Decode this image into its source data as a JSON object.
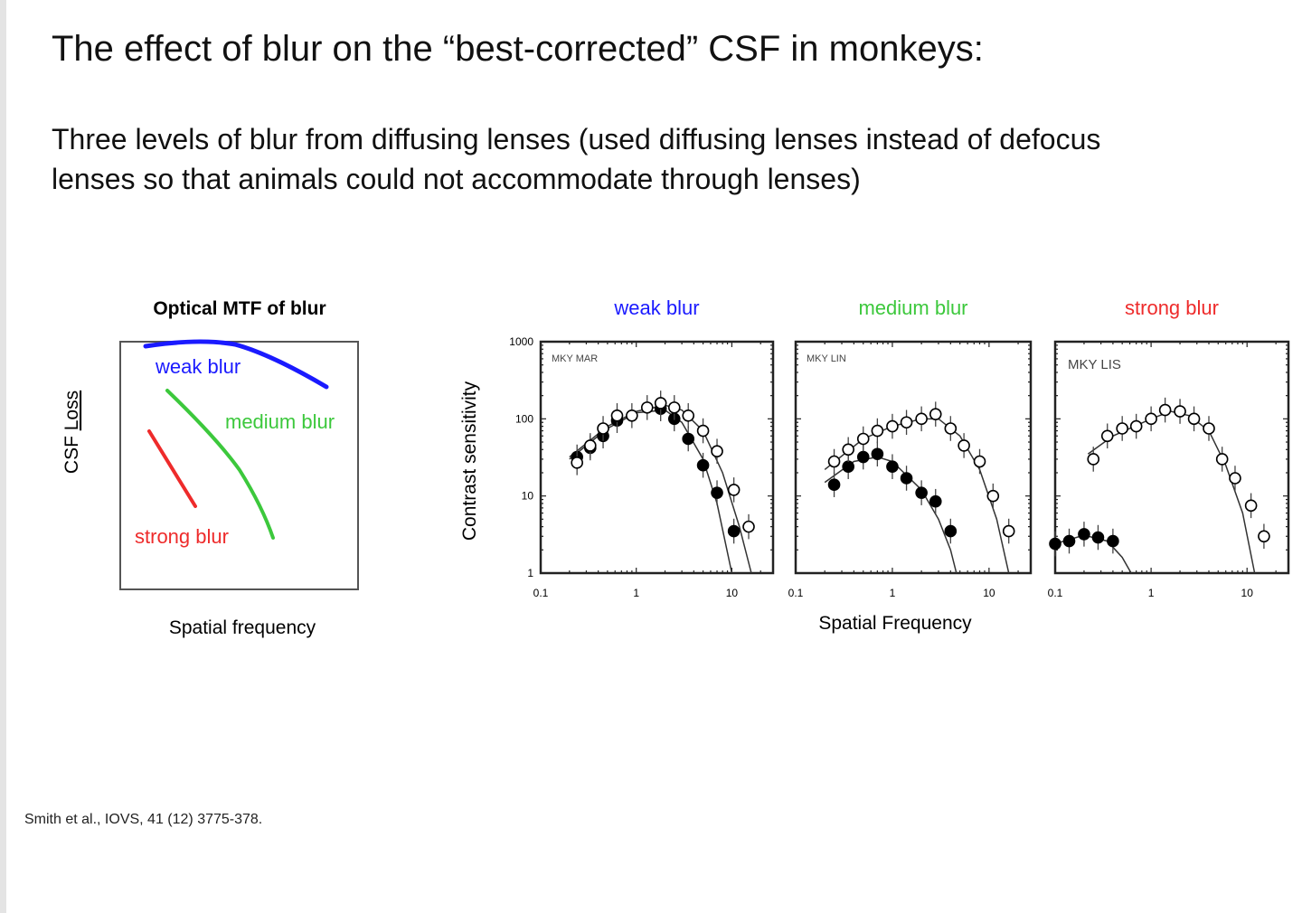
{
  "slide": {
    "title": "The effect of blur on the “best-corrected” CSF in monkeys:",
    "subtitle_line1": "Three levels of blur from diffusing lenses (used diffusing lenses instead of defocus",
    "subtitle_line2": "lenses so that animals could not accommodate through lenses)",
    "citation": "Smith et al., IOVS, 41 (12) 3775-378."
  },
  "colors": {
    "weak": "#1a1aff",
    "medium": "#3cc83c",
    "strong": "#ee2b2b"
  },
  "chart_data": [
    {
      "type": "line",
      "title": "Optical MTF of blur",
      "xlabel": "Spatial frequency",
      "ylabel_prefix": "CSF ",
      "ylabel_underlined": "Loss",
      "series": [
        {
          "name": "weak blur",
          "color": "#1a1aff"
        },
        {
          "name": "medium blur",
          "color": "#3cc83c"
        },
        {
          "name": "strong blur",
          "color": "#ee2b2b"
        }
      ]
    },
    {
      "type": "scatter",
      "title": "weak blur",
      "title_color": "#1a1aff",
      "panel_label": "MKY MAR",
      "ylabel": "Contrast sensitivity",
      "xscale": "log",
      "yscale": "log",
      "xlim": [
        0.1,
        27
      ],
      "ylim": [
        1,
        1000
      ],
      "xticks": [
        "0.1",
        "1",
        "10"
      ],
      "yticks": [
        "1",
        "10",
        "100",
        "1000"
      ],
      "series": [
        {
          "marker": "open",
          "x": [
            0.24,
            0.33,
            0.45,
            0.63,
            0.9,
            1.3,
            1.8,
            2.5,
            3.5,
            5,
            7,
            10.5,
            15
          ],
          "y": [
            27,
            45,
            75,
            110,
            110,
            140,
            160,
            140,
            110,
            70,
            38,
            12,
            4
          ],
          "fit": [
            [
              0.2,
              32
            ],
            [
              0.5,
              80
            ],
            [
              1,
              125
            ],
            [
              2,
              150
            ],
            [
              3,
              130
            ],
            [
              5,
              70
            ],
            [
              8,
              20
            ],
            [
              12,
              4
            ],
            [
              16,
              1
            ]
          ]
        },
        {
          "marker": "filled",
          "x": [
            0.24,
            0.33,
            0.45,
            0.63,
            1.8,
            2.5,
            3.5,
            5,
            7,
            10.5
          ],
          "y": [
            32,
            42,
            60,
            95,
            135,
            100,
            55,
            25,
            11,
            3.5
          ],
          "fit": [
            [
              0.2,
              30
            ],
            [
              0.5,
              75
            ],
            [
              1,
              120
            ],
            [
              2,
              130
            ],
            [
              3,
              90
            ],
            [
              5,
              30
            ],
            [
              7,
              8
            ],
            [
              10,
              1
            ]
          ]
        }
      ]
    },
    {
      "type": "scatter",
      "title": "medium blur",
      "title_color": "#3cc83c",
      "panel_label": "MKY LIN",
      "xlabel": "Spatial Frequency",
      "xscale": "log",
      "yscale": "log",
      "xlim": [
        0.1,
        27
      ],
      "ylim": [
        1,
        1000
      ],
      "xticks": [
        "0.1",
        "1",
        "10"
      ],
      "series": [
        {
          "marker": "open",
          "x": [
            0.25,
            0.35,
            0.5,
            0.7,
            1,
            1.4,
            2,
            2.8,
            4,
            5.5,
            8,
            11,
            16
          ],
          "y": [
            28,
            40,
            55,
            70,
            80,
            90,
            100,
            115,
            75,
            45,
            28,
            10,
            3.5
          ],
          "fit": [
            [
              0.2,
              22
            ],
            [
              0.5,
              55
            ],
            [
              1,
              80
            ],
            [
              2,
              100
            ],
            [
              3,
              100
            ],
            [
              5,
              60
            ],
            [
              8,
              22
            ],
            [
              12,
              5
            ],
            [
              16,
              1
            ]
          ]
        },
        {
          "marker": "filled",
          "x": [
            0.25,
            0.35,
            0.5,
            0.7,
            1,
            1.4,
            2,
            2.8,
            4
          ],
          "y": [
            14,
            24,
            32,
            35,
            24,
            17,
            11,
            8.5,
            3.5
          ],
          "fit": [
            [
              0.2,
              15
            ],
            [
              0.4,
              28
            ],
            [
              0.7,
              32
            ],
            [
              1,
              28
            ],
            [
              2,
              12
            ],
            [
              3,
              5
            ],
            [
              4,
              2
            ],
            [
              4.6,
              1
            ]
          ]
        }
      ]
    },
    {
      "type": "scatter",
      "title": "strong blur",
      "title_color": "#ee2b2b",
      "panel_label": "MKY LIS",
      "xscale": "log",
      "yscale": "log",
      "xlim": [
        0.1,
        27
      ],
      "ylim": [
        1,
        1000
      ],
      "xticks": [
        "0.1",
        "1",
        "10"
      ],
      "series": [
        {
          "marker": "open",
          "x": [
            0.25,
            0.35,
            0.5,
            0.7,
            1,
            1.4,
            2,
            2.8,
            4,
            5.5,
            7.5,
            11,
            15
          ],
          "y": [
            30,
            60,
            75,
            80,
            100,
            130,
            125,
            100,
            75,
            30,
            17,
            7.5,
            3
          ],
          "fit": [
            [
              0.22,
              35
            ],
            [
              0.4,
              60
            ],
            [
              1,
              100
            ],
            [
              1.6,
              125
            ],
            [
              2.5,
              110
            ],
            [
              4,
              70
            ],
            [
              6,
              25
            ],
            [
              9,
              6
            ],
            [
              12,
              1
            ]
          ]
        },
        {
          "marker": "filled",
          "x": [
            0.1,
            0.14,
            0.2,
            0.28,
            0.4
          ],
          "y": [
            2.4,
            2.6,
            3.2,
            2.9,
            2.6
          ],
          "fit": [
            [
              0.1,
              2.4
            ],
            [
              0.2,
              3.1
            ],
            [
              0.35,
              2.6
            ],
            [
              0.5,
              1.6
            ],
            [
              0.62,
              1
            ]
          ]
        }
      ]
    }
  ]
}
